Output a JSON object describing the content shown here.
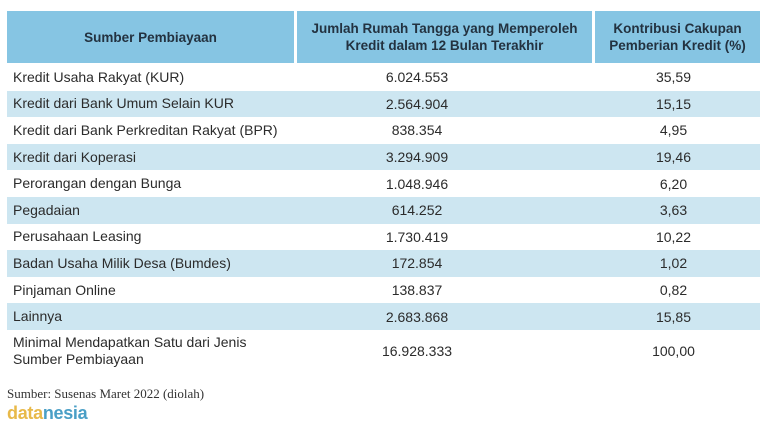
{
  "table": {
    "headers": [
      {
        "lines": [
          "Sumber Pembiayaan"
        ]
      },
      {
        "lines": [
          "Jumlah Rumah Tangga yang Memperoleh",
          "Kredit dalam 12 Bulan Terakhir"
        ]
      },
      {
        "lines": [
          "Kontribusi Cakupan",
          "Pemberian Kredit (%)"
        ]
      }
    ],
    "rows": [
      {
        "name": [
          "Kredit Usaha Rakyat (KUR)"
        ],
        "households": "6.024.553",
        "percent": "35,59"
      },
      {
        "name": [
          "Kredit dari Bank Umum Selain KUR"
        ],
        "households": "2.564.904",
        "percent": "15,15"
      },
      {
        "name": [
          "Kredit dari Bank Perkreditan Rakyat (BPR)"
        ],
        "households": "838.354",
        "percent": "4,95"
      },
      {
        "name": [
          "Kredit dari Koperasi"
        ],
        "households": "3.294.909",
        "percent": "19,46"
      },
      {
        "name": [
          "Perorangan dengan Bunga"
        ],
        "households": "1.048.946",
        "percent": "6,20"
      },
      {
        "name": [
          "Pegadaian"
        ],
        "households": "614.252",
        "percent": "3,63"
      },
      {
        "name": [
          "Perusahaan Leasing"
        ],
        "households": "1.730.419",
        "percent": "10,22"
      },
      {
        "name": [
          "Badan Usaha Milik Desa (Bumdes)"
        ],
        "households": "172.854",
        "percent": "1,02"
      },
      {
        "name": [
          "Pinjaman Online"
        ],
        "households": "138.837",
        "percent": "0,82"
      },
      {
        "name": [
          "Lainnya"
        ],
        "households": "2.683.868",
        "percent": "15,85"
      },
      {
        "name": [
          "Minimal Mendapatkan Satu dari Jenis",
          "Sumber Pembiayaan"
        ],
        "households": "16.928.333",
        "percent": "100,00"
      }
    ]
  },
  "footer": {
    "source": "Sumber: Susenas Maret 2022 (diolah)",
    "logo": {
      "part1": "data",
      "part2": "nesia"
    }
  },
  "colors": {
    "header_bg": "#86c5e3",
    "alt_row_bg": "#cde6f1",
    "logo_yellow": "#e8b949",
    "logo_blue": "#4a9fc6"
  }
}
